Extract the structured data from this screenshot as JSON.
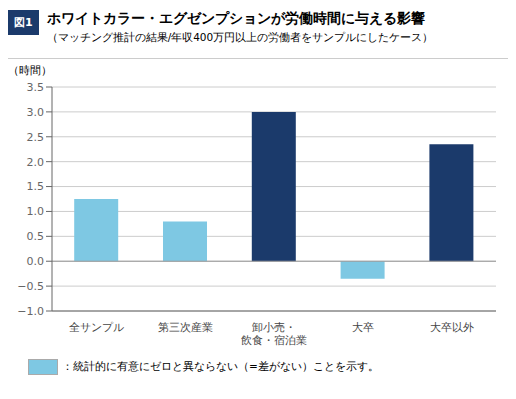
{
  "chart_data": {
    "type": "bar",
    "title": "ホワイトカラー・エグゼンプションが労働時間に与える影響",
    "subtitle": "（マッチング推計の結果/年収400万円以上の労働者をサンプルにしたケース）",
    "annotations": [
      "図1"
    ],
    "ylabel": "（時間）",
    "categories": [
      "全サンプル",
      "第三次産業",
      "卸小売・\n飲食・宿泊業",
      "大卒",
      "大卒以外"
    ],
    "values": [
      1.25,
      0.8,
      3.0,
      -0.35,
      2.35
    ],
    "colors": [
      "#7EC8E3",
      "#7EC8E3",
      "#1B3A6B",
      "#7EC8E3",
      "#1B3A6B"
    ],
    "ylim": [
      -1.0,
      3.5
    ],
    "yticks": [
      {
        "value": -1.0,
        "label": "−1.0"
      },
      {
        "value": -0.5,
        "label": "−0.5"
      },
      {
        "value": 0,
        "label": "0.0"
      },
      0.5,
      {
        "value": 1,
        "label": "1.0"
      },
      1.5,
      {
        "value": 2,
        "label": "2.0"
      },
      2.5,
      {
        "value": 3,
        "label": "3.0"
      },
      3.5
    ],
    "grid": true,
    "legend": "bottom",
    "legend_entries": [
      {
        "name": "：統計的に有意にゼロと異ならない（=差がない）ことを示す。",
        "color": "#7EC8E3"
      }
    ]
  }
}
